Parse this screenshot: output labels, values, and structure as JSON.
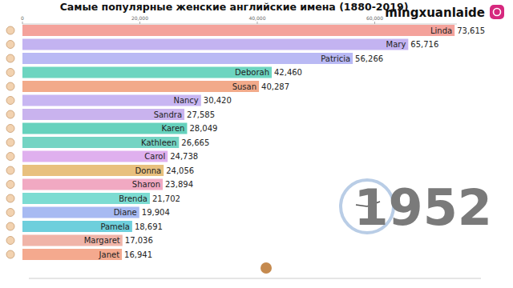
{
  "chart_data": {
    "type": "bar",
    "orientation": "horizontal",
    "title": "Самые популярные женские английские имена (1880-2019)",
    "annotations": [
      "mingxuanlaide",
      "1952"
    ],
    "categories": [
      "Linda",
      "Mary",
      "Patricia",
      "Deborah",
      "Susan",
      "Nancy",
      "Sandra",
      "Karen",
      "Kathleen",
      "Carol",
      "Donna",
      "Sharon",
      "Brenda",
      "Diane",
      "Pamela",
      "Margaret",
      "Janet"
    ],
    "values": [
      73615,
      65716,
      56266,
      42460,
      40287,
      30420,
      27585,
      28049,
      26665,
      24738,
      24056,
      23894,
      21702,
      19904,
      18691,
      17036,
      16941
    ],
    "value_labels": [
      "73,615",
      "65,716",
      "56,266",
      "42,460",
      "40,287",
      "30,420",
      "27,585",
      "28,049",
      "26,665",
      "24,738",
      "24,056",
      "23,894",
      "21,702",
      "19,904",
      "18,691",
      "17,036",
      "16,941"
    ],
    "colors": [
      "#f4a29b",
      "#c3b3f1",
      "#b9b9f4",
      "#6dd5c0",
      "#f2aa8a",
      "#c8b6f2",
      "#c9b3ee",
      "#66d2bd",
      "#74d4c3",
      "#dfb0ee",
      "#e8c07e",
      "#f1a9c2",
      "#7cdcd2",
      "#a7baf2",
      "#6ecfdc",
      "#f0b4a8",
      "#f4a98e"
    ],
    "xlim": [
      0,
      74000
    ],
    "xticks": [
      0,
      {
        "value": 20000,
        "label": "20,000"
      },
      {
        "value": 40000,
        "label": "40,000"
      },
      {
        "value": 60000,
        "label": "60,000"
      }
    ],
    "data_labels": true,
    "grid": false
  }
}
